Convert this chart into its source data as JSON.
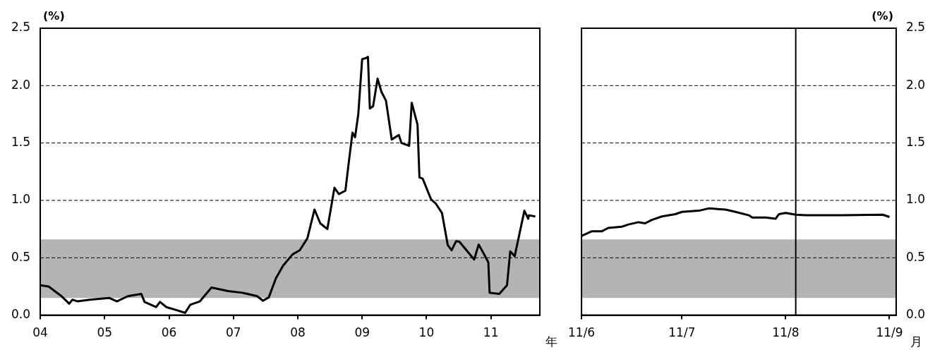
{
  "chart_data": [
    {
      "type": "line",
      "ylabel": "(%)",
      "xlabel": "年",
      "grid": "y",
      "xlim": [
        2004,
        2011.76
      ],
      "ylim": [
        0,
        2.5
      ],
      "xticks": [
        {
          "value": 2004,
          "label": "04"
        },
        {
          "value": 2005,
          "label": "05"
        },
        {
          "value": 2006,
          "label": "06"
        },
        {
          "value": 2007,
          "label": "07"
        },
        {
          "value": 2008,
          "label": "08"
        },
        {
          "value": 2009,
          "label": "09"
        },
        {
          "value": 2010,
          "label": "10"
        },
        {
          "value": 2011,
          "label": "11"
        }
      ],
      "yticks": [
        {
          "value": 0,
          "label": "0.0"
        },
        {
          "value": 0.5,
          "label": "0.5"
        },
        {
          "value": 1,
          "label": "1.0"
        },
        {
          "value": 1.5,
          "label": "1.5"
        },
        {
          "value": 2,
          "label": "2.0"
        },
        {
          "value": 2.5,
          "label": "2.5"
        }
      ],
      "bands": [
        {
          "axis": "y",
          "from": 0.15,
          "to": 0.66,
          "color": "#b4b4b4"
        }
      ],
      "series": [
        {
          "color": "#000000",
          "x": [
            2004.0,
            2004.13,
            2004.32,
            2004.45,
            2004.5,
            2004.58,
            2004.77,
            2005.07,
            2005.19,
            2005.36,
            2005.57,
            2005.62,
            2005.8,
            2005.86,
            2005.96,
            2006.14,
            2006.25,
            2006.33,
            2006.48,
            2006.66,
            2006.92,
            2007.14,
            2007.22,
            2007.37,
            2007.46,
            2007.55,
            2007.66,
            2007.77,
            2007.92,
            2008.03,
            2008.15,
            2008.26,
            2008.35,
            2008.46,
            2008.57,
            2008.64,
            2008.74,
            2008.79,
            2008.85,
            2008.89,
            2008.94,
            2009.0,
            2009.06,
            2009.09,
            2009.12,
            2009.17,
            2009.24,
            2009.3,
            2009.37,
            2009.46,
            2009.57,
            2009.61,
            2009.73,
            2009.77,
            2009.86,
            2009.89,
            2009.94,
            2010.07,
            2010.14,
            2010.24,
            2010.33,
            2010.39,
            2010.46,
            2010.51,
            2010.74,
            2010.81,
            2010.88,
            2010.96,
            2010.98,
            2011.13,
            2011.25,
            2011.3,
            2011.37,
            2011.52,
            2011.58,
            2011.59,
            2011.69
          ],
          "values": [
            0.26,
            0.25,
            0.17,
            0.1,
            0.135,
            0.12,
            0.135,
            0.15,
            0.12,
            0.165,
            0.185,
            0.115,
            0.07,
            0.115,
            0.07,
            0.04,
            0.02,
            0.09,
            0.12,
            0.24,
            0.21,
            0.195,
            0.185,
            0.165,
            0.125,
            0.155,
            0.32,
            0.43,
            0.53,
            0.565,
            0.67,
            0.92,
            0.8,
            0.75,
            1.11,
            1.055,
            1.085,
            1.32,
            1.59,
            1.55,
            1.75,
            2.23,
            2.24,
            2.25,
            1.8,
            1.82,
            2.06,
            1.945,
            1.87,
            1.53,
            1.57,
            1.5,
            1.475,
            1.85,
            1.66,
            1.2,
            1.19,
            1.01,
            0.975,
            0.89,
            0.61,
            0.565,
            0.645,
            0.64,
            0.485,
            0.615,
            0.545,
            0.46,
            0.195,
            0.185,
            0.26,
            0.555,
            0.515,
            0.91,
            0.84,
            0.87,
            0.86
          ]
        }
      ]
    },
    {
      "type": "line",
      "y2label": "(%)",
      "xlabel": "月",
      "grid": "y",
      "xlim": [
        "--06-01",
        "--09-03"
      ],
      "y2lim": [
        0,
        2.5
      ],
      "xticks": [
        {
          "value": "--06-01",
          "label": "11/6"
        },
        {
          "value": "--07-01",
          "label": "11/7"
        },
        {
          "value": "--08-01",
          "label": "11/8"
        },
        {
          "value": "--09-01",
          "label": "11/9"
        }
      ],
      "y2ticks": [
        {
          "value": 0,
          "label": "0.0"
        },
        {
          "value": 0.5,
          "label": "0.5"
        },
        {
          "value": 1,
          "label": "1.0"
        },
        {
          "value": 1.5,
          "label": "1.5"
        },
        {
          "value": 2,
          "label": "2.0"
        },
        {
          "value": 2.5,
          "label": "2.5"
        }
      ],
      "bands": [
        {
          "axis": "y2",
          "from": 0.15,
          "to": 0.66,
          "color": "#b4b4b4"
        }
      ],
      "ref_lines": [
        {
          "axis": "x",
          "value": "--08-04",
          "color": "#000000"
        }
      ],
      "series": [
        {
          "color": "#000000",
          "axis": "y2",
          "x": [
            "--06-01",
            "--06-04",
            "--06-07",
            "--06-09",
            "--06-13",
            "--06-15",
            "--06-18",
            "--06-20",
            "--06-22",
            "--06-25",
            "--06-29",
            "--07-01",
            "--07-06",
            "--07-09",
            "--07-14",
            "--07-17",
            "--07-21",
            "--07-22",
            "--07-26",
            "--07-29",
            "--07-30",
            "--08-01",
            "--08-04",
            "--08-07",
            "--08-18",
            "--08-30",
            "--09-01"
          ],
          "values": [
            0.69,
            0.73,
            0.73,
            0.76,
            0.77,
            0.79,
            0.81,
            0.8,
            0.83,
            0.86,
            0.88,
            0.9,
            0.91,
            0.93,
            0.92,
            0.9,
            0.87,
            0.85,
            0.85,
            0.84,
            0.88,
            0.89,
            0.875,
            0.87,
            0.87,
            0.875,
            0.855
          ]
        }
      ]
    }
  ]
}
